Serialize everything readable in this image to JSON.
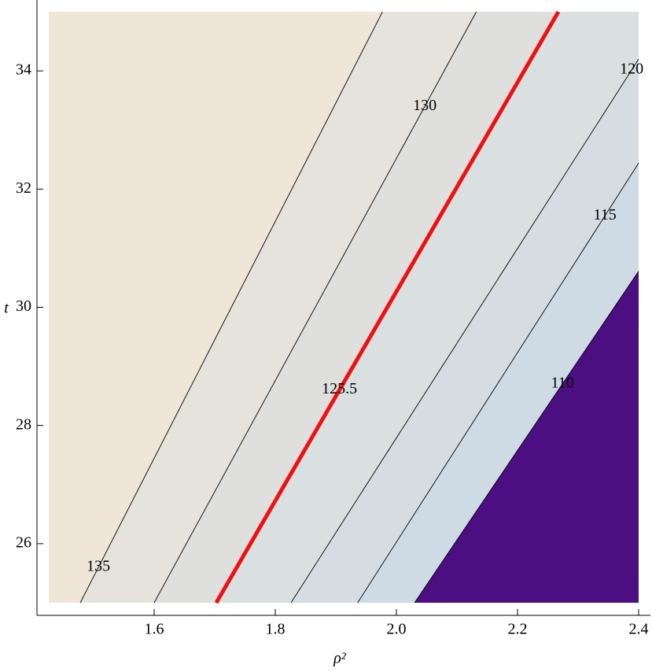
{
  "chart_data": {
    "type": "contour",
    "x_label": "ρ²",
    "y_label": "t",
    "xlim": [
      1.4065,
      2.4195
    ],
    "ylim": [
      24.787,
      35.2
    ],
    "x_range": [
      1.426,
      2.4
    ],
    "y_range": [
      25,
      35
    ],
    "xticks": [
      1.6,
      1.8,
      {
        "value": 2,
        "label": "2.0"
      },
      2.2,
      2.4
    ],
    "yticks": [
      26,
      28,
      30,
      32,
      34
    ],
    "fill_colors": [
      "#efe6d7",
      "#e5e3db",
      "#dfe0dd",
      "#dadfe0",
      "#d5dde3",
      "#cfdbe4",
      "#4b0f82"
    ],
    "contours": [
      {
        "level": 135,
        "color": "#000000",
        "x": [
          1.478,
          1.977
        ],
        "y": [
          25,
          35
        ]
      },
      {
        "level": 130,
        "color": "#000000",
        "x": [
          1.6,
          2.132
        ],
        "y": [
          25,
          35
        ]
      },
      {
        "level": 125.5,
        "color": "#ee1111",
        "x": [
          1.7026,
          2.2675
        ],
        "y": [
          25,
          35
        ]
      },
      {
        "level": 120,
        "color": "#000000",
        "x": [
          1.826,
          2.4
        ],
        "y": [
          25,
          34.2
        ]
      },
      {
        "level": 115,
        "color": "#000000",
        "x": [
          1.936,
          2.4
        ],
        "y": [
          25,
          32.44
        ]
      },
      {
        "level": 110,
        "color": "#000000",
        "x": [
          2.03,
          2.4
        ],
        "y": [
          25,
          30.61
        ]
      }
    ]
  }
}
